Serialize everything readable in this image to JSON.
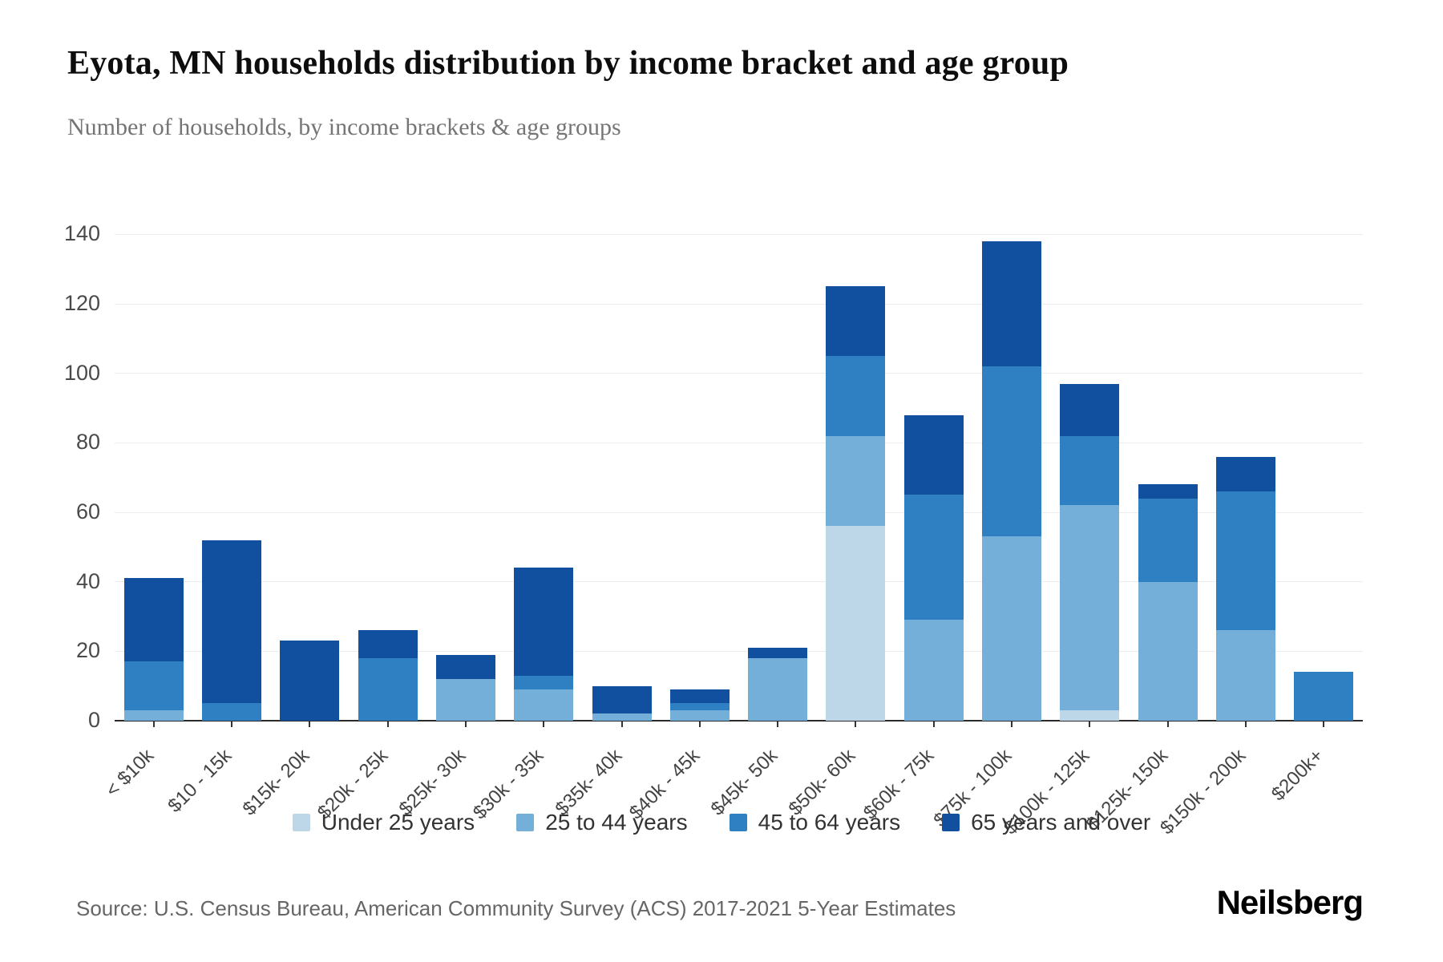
{
  "chart_data": {
    "type": "bar",
    "variant": "stacked-vertical",
    "title": "Eyota, MN households distribution by income bracket and age group",
    "subtitle": "Number of households, by income brackets & age groups",
    "categories": [
      "< $10k",
      "$10 - 15k",
      "$15k- 20k",
      "$20k - 25k",
      "$25k- 30k",
      "$30k - 35k",
      "$35k- 40k",
      "$40k - 45k",
      "$45k- 50k",
      "$50k- 60k",
      "$60k - 75k",
      "$75k - 100k",
      "$100k - 125k",
      "$125k- 150k",
      "$150k - 200k",
      "$200k+"
    ],
    "series": [
      {
        "name": "Under 25 years",
        "color": "#bdd7e9",
        "values": [
          0,
          0,
          0,
          0,
          0,
          0,
          0,
          0,
          0,
          56,
          0,
          0,
          3,
          0,
          0,
          0
        ]
      },
      {
        "name": "25 to 44 years",
        "color": "#74afd9",
        "values": [
          3,
          0,
          0,
          0,
          12,
          9,
          2,
          3,
          18,
          26,
          29,
          53,
          59,
          40,
          26,
          0
        ]
      },
      {
        "name": "45 to 64 years",
        "color": "#2f7fc3",
        "values": [
          14,
          5,
          0,
          18,
          0,
          4,
          0,
          2,
          0,
          23,
          36,
          49,
          20,
          24,
          40,
          14
        ]
      },
      {
        "name": "65 years and over",
        "color": "#10509f",
        "values": [
          24,
          47,
          23,
          8,
          7,
          31,
          8,
          4,
          3,
          20,
          23,
          36,
          15,
          4,
          10,
          0
        ]
      }
    ],
    "totals": [
      41,
      52,
      23,
      26,
      19,
      44,
      10,
      9,
      21,
      125,
      88,
      138,
      97,
      68,
      76,
      14
    ],
    "y_ticks": [
      0,
      20,
      40,
      60,
      80,
      100,
      120,
      140
    ],
    "ylim": [
      0,
      150
    ],
    "xlabel": "",
    "ylabel": "",
    "grid": "horizontal",
    "legend_position": "bottom"
  },
  "footer": {
    "source": "Source: U.S. Census Bureau, American Community Survey (ACS) 2017-2021 5-Year Estimates",
    "brand": "Neilsberg"
  }
}
